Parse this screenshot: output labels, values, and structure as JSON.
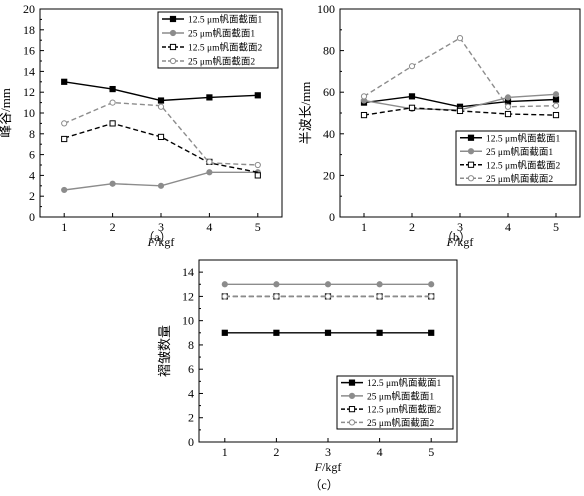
{
  "chart_data": [
    {
      "panel_label": "（a）",
      "type": "line",
      "xlabel_italic": "F",
      "xlabel_unit": "/kgf",
      "ylabel": "峰谷/mm",
      "x": [
        1,
        2,
        3,
        4,
        5
      ],
      "xticks": [
        "1",
        "2",
        "3",
        "4",
        "5"
      ],
      "xlim": [
        0.5,
        5.5
      ],
      "ylim": [
        0,
        20
      ],
      "yticks": [
        "0",
        "2",
        "4",
        "6",
        "8",
        "10",
        "12",
        "14",
        "16",
        "18",
        "20"
      ],
      "ytick_values": [
        0,
        2,
        4,
        6,
        8,
        10,
        12,
        14,
        16,
        18,
        20
      ],
      "legend_position": "top-right",
      "series": [
        {
          "name": "12.5 μm帆面截面1",
          "points": [
            13.0,
            12.3,
            11.2,
            11.5,
            11.7
          ],
          "fit": [
            13.0,
            12.3,
            11.2,
            11.5,
            11.7
          ],
          "color": "#000000",
          "marker": "square-filled",
          "dash": "solid"
        },
        {
          "name": "25 μm帆面截面1",
          "points": [
            2.6,
            3.2,
            3.0,
            4.3,
            4.3
          ],
          "fit": [
            2.6,
            3.2,
            3.0,
            4.3,
            4.3
          ],
          "color": "#8c8c8c",
          "marker": "circle-filled",
          "dash": "solid"
        },
        {
          "name": "12.5 μm帆面截面2",
          "points": [
            7.5,
            9.0,
            7.7,
            5.3,
            4.0
          ],
          "fit": [
            7.6,
            9.0,
            7.7,
            5.2,
            4.3
          ],
          "color": "#000000",
          "marker": "square-open",
          "dash": "dashed"
        },
        {
          "name": "25 μm帆面截面2",
          "points": [
            9.0,
            11.0,
            10.6,
            5.3,
            5.0
          ],
          "fit": [
            9.0,
            11.0,
            10.7,
            5.2,
            5.0
          ],
          "color": "#8c8c8c",
          "marker": "circle-open",
          "dash": "dashed"
        }
      ]
    },
    {
      "panel_label": "（b）",
      "type": "line",
      "xlabel_italic": "F",
      "xlabel_unit": "/kgf",
      "ylabel": "半波长/mm",
      "x": [
        1,
        2,
        3,
        4,
        5
      ],
      "xticks": [
        "1",
        "2",
        "3",
        "4",
        "5"
      ],
      "xlim": [
        0.5,
        5.5
      ],
      "ylim": [
        0,
        100
      ],
      "yticks": [
        "0",
        "20",
        "40",
        "60",
        "80",
        "100"
      ],
      "ytick_values": [
        0,
        20,
        40,
        60,
        80,
        100
      ],
      "legend_position": "bottom-right",
      "series": [
        {
          "name": "12.5 μm帆面截面1",
          "points": [
            55.0,
            58.0,
            53.0,
            55.5,
            56.5
          ],
          "fit": [
            55.0,
            58.0,
            53.0,
            55.5,
            56.5
          ],
          "color": "#000000",
          "marker": "square-filled",
          "dash": "solid"
        },
        {
          "name": "25 μm帆面截面1",
          "points": [
            56.0,
            52.0,
            51.5,
            57.5,
            59.0
          ],
          "fit": [
            56.0,
            52.0,
            51.5,
            57.5,
            59.0
          ],
          "color": "#8c8c8c",
          "marker": "circle-filled",
          "dash": "solid"
        },
        {
          "name": "12.5 μm帆面截面2",
          "points": [
            49.0,
            52.5,
            51.0,
            49.5,
            49.0
          ],
          "fit": [
            49.0,
            52.5,
            51.0,
            49.5,
            49.0
          ],
          "color": "#000000",
          "marker": "square-open",
          "dash": "dashed"
        },
        {
          "name": "25 μm帆面截面2",
          "points": [
            58.0,
            72.5,
            86.0,
            53.0,
            53.5
          ],
          "fit": [
            58.0,
            72.5,
            86.0,
            53.0,
            53.5
          ],
          "color": "#8c8c8c",
          "marker": "circle-open",
          "dash": "dashed"
        }
      ]
    },
    {
      "panel_label": "（c）",
      "type": "line",
      "xlabel_italic": "F",
      "xlabel_unit": "/kgf",
      "ylabel": "褶皱数量",
      "x": [
        1,
        2,
        3,
        4,
        5
      ],
      "xticks": [
        "1",
        "2",
        "3",
        "4",
        "5"
      ],
      "xlim": [
        0.5,
        5.5
      ],
      "ylim": [
        0,
        15
      ],
      "yticks": [
        "0",
        "2",
        "4",
        "6",
        "8",
        "10",
        "12",
        "14"
      ],
      "ytick_values": [
        0,
        2,
        4,
        6,
        8,
        10,
        12,
        14
      ],
      "legend_position": "bottom-right",
      "series": [
        {
          "name": "12.5 μm帆面截面1",
          "points": [
            9,
            9,
            9,
            9,
            9
          ],
          "fit": [
            9,
            9,
            9,
            9,
            9
          ],
          "color": "#000000",
          "marker": "square-filled",
          "dash": "solid"
        },
        {
          "name": "25 μm帆面截面1",
          "points": [
            13,
            13,
            13,
            13,
            13
          ],
          "fit": [
            13,
            13,
            13,
            13,
            13
          ],
          "color": "#8c8c8c",
          "marker": "circle-filled",
          "dash": "solid"
        },
        {
          "name": "12.5 μm帆面截面2",
          "points": [
            12,
            12,
            12,
            12,
            12
          ],
          "fit": [
            12,
            12,
            12,
            12,
            12
          ],
          "color": "#000000",
          "marker": "square-open",
          "dash": "dashed"
        },
        {
          "name": "25 μm帆面截面2",
          "points": [
            12,
            12,
            12,
            12,
            12
          ],
          "fit": [
            12,
            12,
            12,
            12,
            12
          ],
          "color": "#8c8c8c",
          "marker": "circle-open",
          "dash": "dashed"
        }
      ]
    }
  ]
}
